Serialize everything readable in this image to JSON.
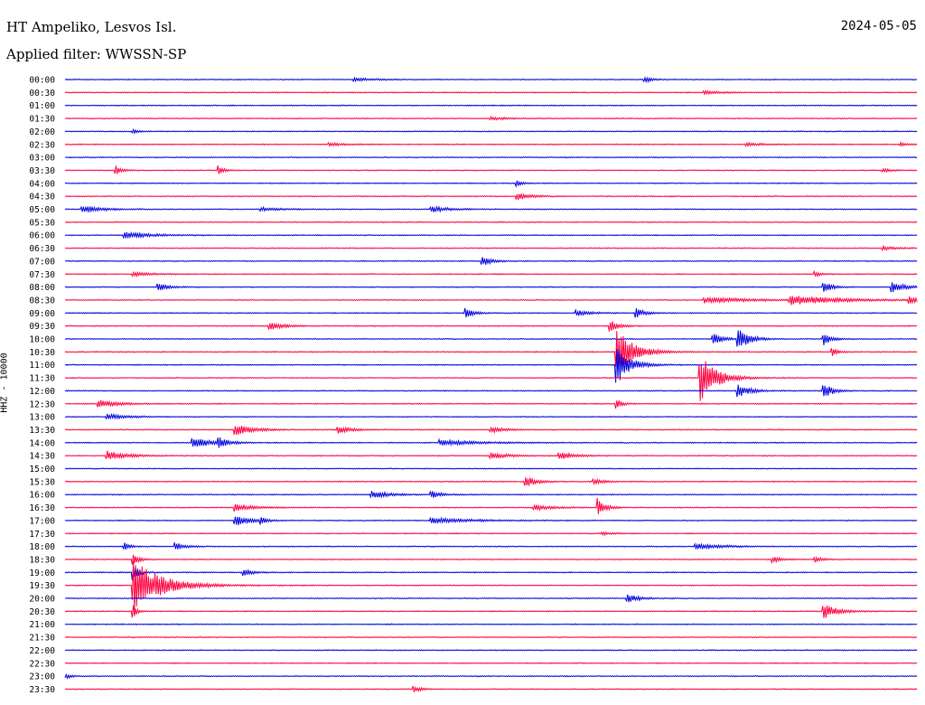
{
  "header": {
    "station": "HT Ampeliko, Lesvos Isl.",
    "date": "2024-05-05",
    "filter_label": "Applied filter: WWSSN-SP"
  },
  "channel_label": "HHZ - 10000",
  "colors": {
    "trace_a": "#0000e0",
    "trace_b": "#ff0040"
  },
  "rows": [
    {
      "time": "00:00",
      "events": [
        {
          "p": 0.34,
          "a": 1.5,
          "w": 0.02
        },
        {
          "p": 0.68,
          "a": 3,
          "w": 0.008
        }
      ]
    },
    {
      "time": "00:30",
      "events": [
        {
          "p": 0.75,
          "a": 1.5,
          "w": 0.02
        }
      ]
    },
    {
      "time": "01:00",
      "events": []
    },
    {
      "time": "01:30",
      "events": [
        {
          "p": 0.5,
          "a": 1.5,
          "w": 0.02
        }
      ]
    },
    {
      "time": "02:00",
      "events": [
        {
          "p": 0.08,
          "a": 2,
          "w": 0.006
        }
      ]
    },
    {
      "time": "02:30",
      "events": [
        {
          "p": 0.31,
          "a": 1.5,
          "w": 0.02
        },
        {
          "p": 0.8,
          "a": 1.5,
          "w": 0.02
        },
        {
          "p": 0.98,
          "a": 1.5,
          "w": 0.01
        }
      ]
    },
    {
      "time": "03:00",
      "events": []
    },
    {
      "time": "03:30",
      "events": [
        {
          "p": 0.06,
          "a": 5,
          "w": 0.006
        },
        {
          "p": 0.18,
          "a": 5,
          "w": 0.006
        },
        {
          "p": 0.96,
          "a": 2,
          "w": 0.008
        }
      ]
    },
    {
      "time": "04:00",
      "events": [
        {
          "p": 0.53,
          "a": 3,
          "w": 0.006
        }
      ]
    },
    {
      "time": "04:30",
      "events": [
        {
          "p": 0.53,
          "a": 4,
          "w": 0.014
        }
      ]
    },
    {
      "time": "05:00",
      "events": [
        {
          "p": 0.02,
          "a": 4,
          "w": 0.02
        },
        {
          "p": 0.23,
          "a": 2,
          "w": 0.02
        },
        {
          "p": 0.43,
          "a": 3,
          "w": 0.02
        }
      ]
    },
    {
      "time": "05:30",
      "events": []
    },
    {
      "time": "06:00",
      "events": [
        {
          "p": 0.07,
          "a": 4,
          "w": 0.025
        }
      ]
    },
    {
      "time": "06:30",
      "events": [
        {
          "p": 0.96,
          "a": 2,
          "w": 0.014
        }
      ]
    },
    {
      "time": "07:00",
      "events": [
        {
          "p": 0.49,
          "a": 5,
          "w": 0.01
        }
      ]
    },
    {
      "time": "07:30",
      "events": [
        {
          "p": 0.08,
          "a": 2,
          "w": 0.02
        },
        {
          "p": 0.88,
          "a": 3,
          "w": 0.006
        }
      ]
    },
    {
      "time": "08:00",
      "events": [
        {
          "p": 0.11,
          "a": 4,
          "w": 0.01
        },
        {
          "p": 0.89,
          "a": 7,
          "w": 0.008
        },
        {
          "p": 0.97,
          "a": 6,
          "w": 0.014
        }
      ]
    },
    {
      "time": "08:30",
      "events": [
        {
          "p": 0.85,
          "a": 5,
          "w": 0.05
        },
        {
          "p": 0.75,
          "a": 3,
          "w": 0.05
        },
        {
          "p": 0.99,
          "a": 4,
          "w": 0.01
        }
      ]
    },
    {
      "time": "09:00",
      "events": [
        {
          "p": 0.47,
          "a": 6,
          "w": 0.008
        },
        {
          "p": 0.6,
          "a": 3,
          "w": 0.015
        },
        {
          "p": 0.67,
          "a": 5,
          "w": 0.01
        }
      ]
    },
    {
      "time": "09:30",
      "events": [
        {
          "p": 0.24,
          "a": 5,
          "w": 0.014
        },
        {
          "p": 0.64,
          "a": 6,
          "w": 0.01
        }
      ]
    },
    {
      "time": "10:00",
      "events": [
        {
          "p": 0.76,
          "a": 6,
          "w": 0.01
        },
        {
          "p": 0.79,
          "a": 12,
          "w": 0.012
        },
        {
          "p": 0.89,
          "a": 7,
          "w": 0.008
        }
      ]
    },
    {
      "time": "10:30",
      "events": [
        {
          "p": 0.647,
          "a": 30,
          "w": 0.018
        },
        {
          "p": 0.9,
          "a": 4,
          "w": 0.006
        }
      ]
    },
    {
      "time": "11:00",
      "events": [
        {
          "p": 0.647,
          "a": 22,
          "w": 0.014
        }
      ]
    },
    {
      "time": "11:30",
      "events": [
        {
          "p": 0.745,
          "a": 26,
          "w": 0.018
        }
      ]
    },
    {
      "time": "12:00",
      "events": [
        {
          "p": 0.79,
          "a": 7,
          "w": 0.012
        },
        {
          "p": 0.89,
          "a": 8,
          "w": 0.01
        }
      ]
    },
    {
      "time": "12:30",
      "events": [
        {
          "p": 0.04,
          "a": 4,
          "w": 0.02
        },
        {
          "p": 0.647,
          "a": 5,
          "w": 0.006
        }
      ]
    },
    {
      "time": "13:00",
      "events": [
        {
          "p": 0.05,
          "a": 3,
          "w": 0.02
        }
      ]
    },
    {
      "time": "13:30",
      "events": [
        {
          "p": 0.2,
          "a": 6,
          "w": 0.02
        },
        {
          "p": 0.32,
          "a": 4,
          "w": 0.015
        },
        {
          "p": 0.5,
          "a": 3,
          "w": 0.015
        }
      ]
    },
    {
      "time": "14:00",
      "events": [
        {
          "p": 0.15,
          "a": 6,
          "w": 0.02
        },
        {
          "p": 0.18,
          "a": 6,
          "w": 0.008
        },
        {
          "p": 0.44,
          "a": 3,
          "w": 0.04
        }
      ]
    },
    {
      "time": "14:30",
      "events": [
        {
          "p": 0.05,
          "a": 5,
          "w": 0.02
        },
        {
          "p": 0.5,
          "a": 3,
          "w": 0.02
        },
        {
          "p": 0.58,
          "a": 4,
          "w": 0.015
        }
      ]
    },
    {
      "time": "15:00",
      "events": []
    },
    {
      "time": "15:30",
      "events": [
        {
          "p": 0.54,
          "a": 6,
          "w": 0.012
        },
        {
          "p": 0.62,
          "a": 3,
          "w": 0.01
        }
      ]
    },
    {
      "time": "16:00",
      "events": [
        {
          "p": 0.36,
          "a": 4,
          "w": 0.02
        },
        {
          "p": 0.43,
          "a": 4,
          "w": 0.01
        }
      ]
    },
    {
      "time": "16:30",
      "events": [
        {
          "p": 0.2,
          "a": 4,
          "w": 0.02
        },
        {
          "p": 0.55,
          "a": 3,
          "w": 0.02
        },
        {
          "p": 0.625,
          "a": 10,
          "w": 0.008
        }
      ]
    },
    {
      "time": "17:00",
      "events": [
        {
          "p": 0.2,
          "a": 6,
          "w": 0.014
        },
        {
          "p": 0.23,
          "a": 4,
          "w": 0.006
        },
        {
          "p": 0.43,
          "a": 3,
          "w": 0.04
        }
      ]
    },
    {
      "time": "17:30",
      "events": [
        {
          "p": 0.63,
          "a": 2,
          "w": 0.01
        }
      ]
    },
    {
      "time": "18:00",
      "events": [
        {
          "p": 0.07,
          "a": 4,
          "w": 0.006
        },
        {
          "p": 0.13,
          "a": 4,
          "w": 0.01
        },
        {
          "p": 0.74,
          "a": 3,
          "w": 0.03
        }
      ]
    },
    {
      "time": "18:30",
      "events": [
        {
          "p": 0.08,
          "a": 8,
          "w": 0.006
        },
        {
          "p": 0.83,
          "a": 3,
          "w": 0.01
        },
        {
          "p": 0.88,
          "a": 3,
          "w": 0.008
        }
      ]
    },
    {
      "time": "19:00",
      "events": [
        {
          "p": 0.08,
          "a": 10,
          "w": 0.006
        },
        {
          "p": 0.21,
          "a": 4,
          "w": 0.01
        }
      ]
    },
    {
      "time": "19:30",
      "events": [
        {
          "p": 0.08,
          "a": 30,
          "w": 0.03
        }
      ]
    },
    {
      "time": "20:00",
      "events": [
        {
          "p": 0.66,
          "a": 5,
          "w": 0.012
        }
      ]
    },
    {
      "time": "20:30",
      "events": [
        {
          "p": 0.89,
          "a": 8,
          "w": 0.015
        },
        {
          "p": 0.08,
          "a": 8,
          "w": 0.004
        }
      ]
    },
    {
      "time": "21:00",
      "events": []
    },
    {
      "time": "21:30",
      "events": []
    },
    {
      "time": "22:00",
      "events": []
    },
    {
      "time": "22:30",
      "events": []
    },
    {
      "time": "23:00",
      "events": [
        {
          "p": 0.0,
          "a": 3,
          "w": 0.006
        }
      ]
    },
    {
      "time": "23:30",
      "events": [
        {
          "p": 0.41,
          "a": 3,
          "w": 0.008
        }
      ]
    }
  ]
}
